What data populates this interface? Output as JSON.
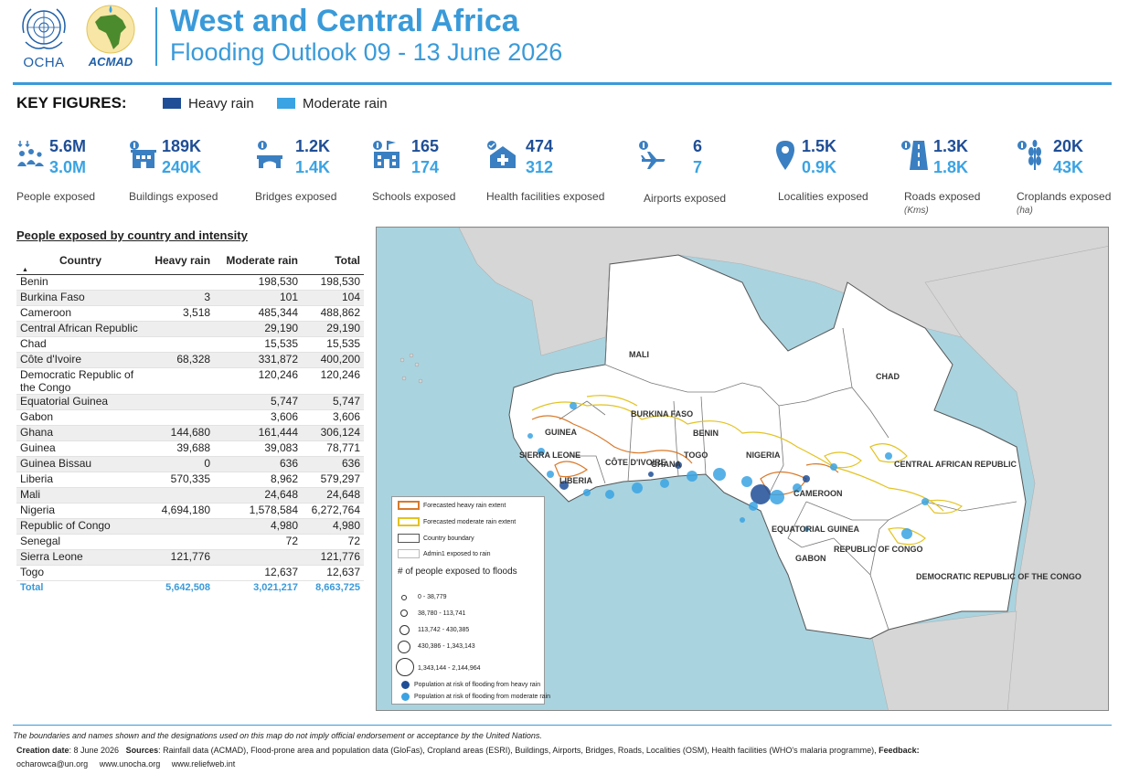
{
  "header": {
    "ocha_text": "OCHA",
    "acmad_text": "ACMAD",
    "title": "West and Central Africa",
    "subtitle": "Flooding Outlook 09 - 13 June 2026"
  },
  "legend": {
    "key_figures_title": "KEY FIGURES:",
    "heavy_label": "Heavy rain",
    "moderate_label": "Moderate rain",
    "heavy_color": "#1f4e96",
    "moderate_color": "#3aa3e3"
  },
  "key_figures": [
    {
      "icon": "people-icon",
      "heavy": "5.6M",
      "moderate": "3.0M",
      "label": "People exposed",
      "unit": ""
    },
    {
      "icon": "buildings-icon",
      "heavy": "189K",
      "moderate": "240K",
      "label": "Buildings exposed",
      "unit": ""
    },
    {
      "icon": "bridge-icon",
      "heavy": "1.2K",
      "moderate": "1.4K",
      "label": "Bridges exposed",
      "unit": ""
    },
    {
      "icon": "school-icon",
      "heavy": "165",
      "moderate": "174",
      "label": "Schools exposed",
      "unit": ""
    },
    {
      "icon": "health-facility-icon",
      "heavy": "474",
      "moderate": "312",
      "label": "Health facilities exposed",
      "unit": ""
    },
    {
      "icon": "airport-icon",
      "heavy": "6",
      "moderate": "7",
      "label": "Airports exposed",
      "unit": ""
    },
    {
      "icon": "location-pin-icon",
      "heavy": "1.5K",
      "moderate": "0.9K",
      "label": "Localities exposed",
      "unit": ""
    },
    {
      "icon": "road-icon",
      "heavy": "1.3K",
      "moderate": "1.8K",
      "label": "Roads exposed",
      "unit": "(Kms)"
    },
    {
      "icon": "crop-icon",
      "heavy": "20K",
      "moderate": "43K",
      "label": "Croplands exposed",
      "unit": "(ha)"
    }
  ],
  "table": {
    "title": "People exposed by country and intensity",
    "headers": [
      "Country",
      "Heavy rain",
      "Moderate rain",
      "Total"
    ],
    "rows": [
      [
        "Benin",
        "",
        "198,530",
        "198,530"
      ],
      [
        "Burkina Faso",
        "3",
        "101",
        "104"
      ],
      [
        "Cameroon",
        "3,518",
        "485,344",
        "488,862"
      ],
      [
        "Central African Republic",
        "",
        "29,190",
        "29,190"
      ],
      [
        "Chad",
        "",
        "15,535",
        "15,535"
      ],
      [
        "Côte d'Ivoire",
        "68,328",
        "331,872",
        "400,200"
      ],
      [
        "Democratic Republic of the Congo",
        "",
        "120,246",
        "120,246"
      ],
      [
        "Equatorial Guinea",
        "",
        "5,747",
        "5,747"
      ],
      [
        "Gabon",
        "",
        "3,606",
        "3,606"
      ],
      [
        "Ghana",
        "144,680",
        "161,444",
        "306,124"
      ],
      [
        "Guinea",
        "39,688",
        "39,083",
        "78,771"
      ],
      [
        "Guinea Bissau",
        "0",
        "636",
        "636"
      ],
      [
        "Liberia",
        "570,335",
        "8,962",
        "579,297"
      ],
      [
        "Mali",
        "",
        "24,648",
        "24,648"
      ],
      [
        "Nigeria",
        "4,694,180",
        "1,578,584",
        "6,272,764"
      ],
      [
        "Republic of Congo",
        "",
        "4,980",
        "4,980"
      ],
      [
        "Senegal",
        "",
        "72",
        "72"
      ],
      [
        "Sierra Leone",
        "121,776",
        "",
        "121,776"
      ],
      [
        "Togo",
        "",
        "12,637",
        "12,637"
      ]
    ],
    "total": [
      "Total",
      "5,642,508",
      "3,021,217",
      "8,663,725"
    ]
  },
  "map": {
    "country_labels": [
      "MALI",
      "CHAD",
      "BURKINA FASO",
      "BENIN",
      "NIGERIA",
      "GUINEA",
      "SIERRA LEONE",
      "LIBERIA",
      "CÔTE D'IVOIRE",
      "GHANA",
      "TOGO",
      "CENTRAL AFRICAN REPUBLIC",
      "CAMEROON",
      "EQUATORIAL GUINEA",
      "GABON",
      "REPUBLIC OF CONGO",
      "DEMOCRATIC REPUBLIC OF THE CONGO"
    ],
    "legend": {
      "heavy_extent": "Forecasted heavy rain extent",
      "moderate_extent": "Forecasted moderate rain extent",
      "country_boundary": "Country boundary",
      "admin1": "Admin1 exposed to rain",
      "size_title": "# of people exposed to floods",
      "size_classes": [
        "0 - 38,779",
        "38,780 - 113,741",
        "113,742 - 430,385",
        "430,386 - 1,343,143",
        "1,343,144 - 2,144,964"
      ],
      "heavy_pop": "Population at risk of flooding from heavy rain",
      "moderate_pop": "Population at risk of flooding from moderate rain"
    }
  },
  "footer": {
    "disclaimer": "The boundaries and names shown and the designations used on this map do not imply official endorsement or acceptance by the United Nations.",
    "creation_label": "Creation date",
    "creation_value": ": 8 June 2026",
    "sources_label": "Sources",
    "sources_value": ": Rainfall data (ACMAD), Flood-prone area and population data (GloFas), Cropland areas (ESRI), Buildings, Airports, Bridges, Roads, Localities (OSM), Health facilities (WHO's malaria programme),",
    "feedback_label": "Feedback:",
    "feedback_value": "ocharowca@un.org",
    "link1": "www.unocha.org",
    "link2": "www.reliefweb.int"
  }
}
